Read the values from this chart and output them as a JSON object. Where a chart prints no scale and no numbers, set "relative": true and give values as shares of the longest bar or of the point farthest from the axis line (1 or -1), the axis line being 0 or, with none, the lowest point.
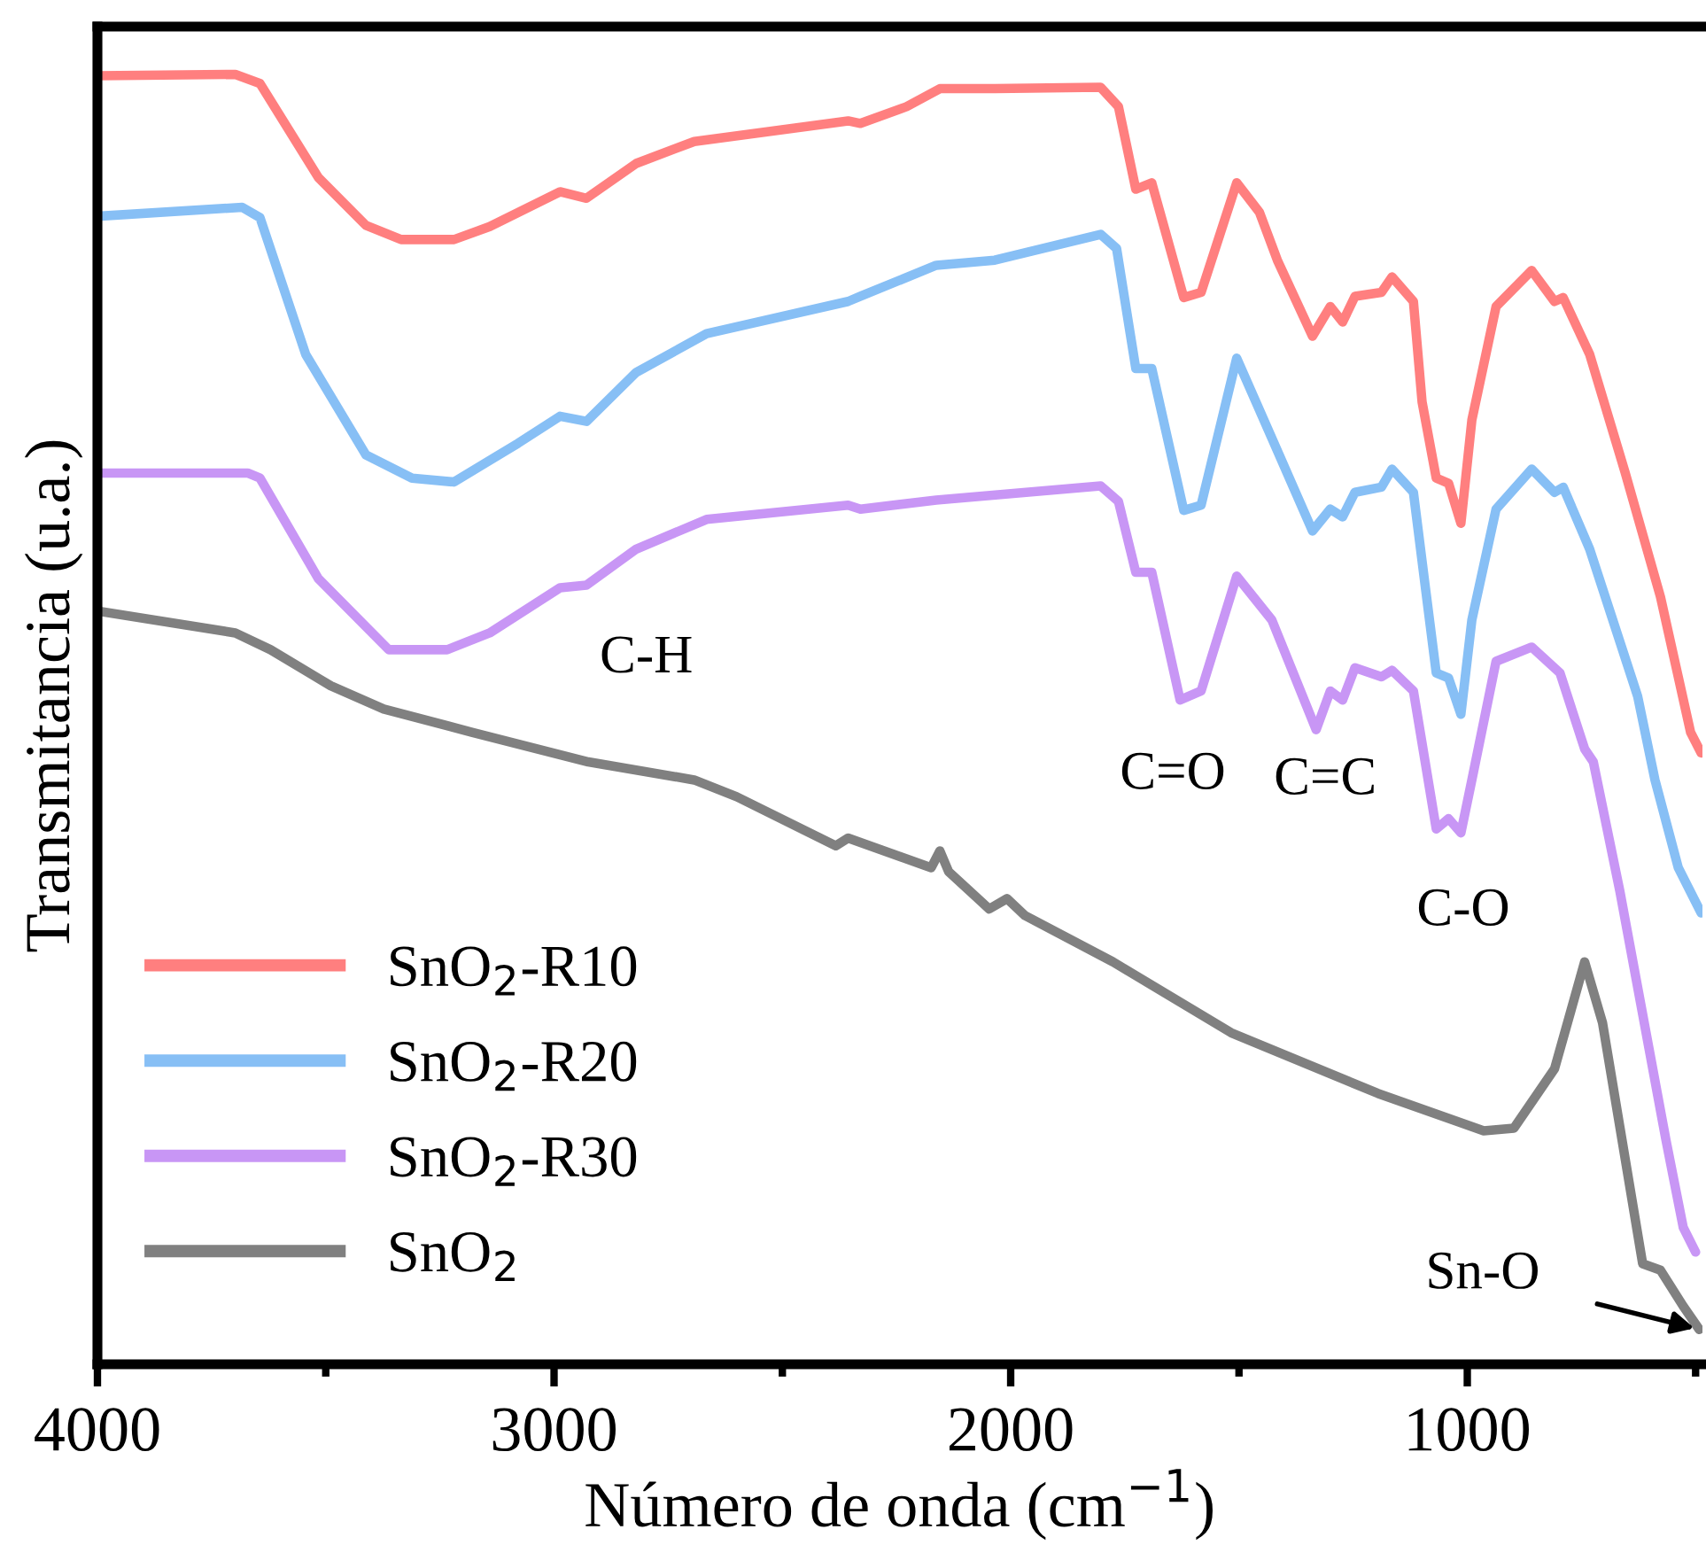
{
  "chart_data": {
    "type": "line",
    "relative": true,
    "xlabel": "Número de onda (cm$^{−1}$)",
    "ylabel": "Transmitancia (u.a.)",
    "xlim": [
      4000,
      485
    ],
    "xticks": [
      4000,
      {
        "value": 3500,
        "label": null
      },
      3000,
      {
        "value": 2500,
        "label": null
      },
      2000,
      {
        "value": 1500,
        "label": null
      },
      1000,
      {
        "value": 500,
        "label": null
      }
    ],
    "tick_labels": "x",
    "grid": false,
    "legend": "bottom left",
    "marker": "none",
    "line_style": "solid",
    "annotations": [
      "C-H",
      "C=O",
      "C=C",
      "C-O",
      {
        "text": "Sn-O",
        "x": 492,
        "y": 0.027
      }
    ],
    "series": [
      {
        "name": "SnO$_{2}$-R10",
        "color": "#ff7f7f",
        "x": [
          4000,
          3698,
          3644,
          3516,
          3412,
          3335,
          3219,
          3141,
          2987,
          2929,
          2820,
          2693,
          2356,
          2329,
          2228,
          2155,
          2035,
          1803,
          1764,
          1726,
          1691,
          1621,
          1583,
          1505,
          1455,
          1416,
          1339,
          1300,
          1273,
          1246,
          1188,
          1165,
          1118,
          1099,
          1068,
          1041,
          1014,
          990,
          937,
          859,
          809,
          790,
          732,
          654,
          577,
          511,
          488
        ],
        "values": [
          0.999,
          1.0,
          0.993,
          0.92,
          0.883,
          0.872,
          0.872,
          0.882,
          0.909,
          0.904,
          0.931,
          0.948,
          0.964,
          0.962,
          0.975,
          0.989,
          0.989,
          0.99,
          0.975,
          0.911,
          0.916,
          0.827,
          0.831,
          0.916,
          0.893,
          0.856,
          0.797,
          0.82,
          0.808,
          0.828,
          0.831,
          0.843,
          0.824,
          0.746,
          0.687,
          0.683,
          0.652,
          0.732,
          0.82,
          0.848,
          0.824,
          0.827,
          0.783,
          0.691,
          0.595,
          0.49,
          0.474
        ]
      },
      {
        "name": "SnO$_{2}$-R20",
        "color": "#87bff5",
        "x": [
          4000,
          3683,
          3644,
          3544,
          3412,
          3311,
          3219,
          3079,
          2987,
          2929,
          2820,
          2666,
          2356,
          2329,
          2163,
          2035,
          1803,
          1768,
          1726,
          1691,
          1621,
          1583,
          1505,
          1428,
          1339,
          1300,
          1273,
          1246,
          1188,
          1165,
          1118,
          1091,
          1068,
          1041,
          1014,
          990,
          937,
          859,
          809,
          790,
          732,
          627,
          589,
          538,
          488
        ],
        "values": [
          0.89,
          0.897,
          0.889,
          0.783,
          0.705,
          0.687,
          0.684,
          0.714,
          0.735,
          0.731,
          0.769,
          0.799,
          0.824,
          0.828,
          0.852,
          0.856,
          0.876,
          0.865,
          0.772,
          0.772,
          0.662,
          0.666,
          0.78,
          0.718,
          0.646,
          0.663,
          0.657,
          0.676,
          0.68,
          0.694,
          0.676,
          0.6,
          0.536,
          0.532,
          0.504,
          0.577,
          0.663,
          0.694,
          0.676,
          0.68,
          0.632,
          0.518,
          0.453,
          0.385,
          0.35
        ]
      },
      {
        "name": "SnO$_{2}$-R30",
        "color": "#c896f5",
        "x": [
          4000,
          3671,
          3644,
          3516,
          3362,
          3234,
          3141,
          2987,
          2929,
          2820,
          2666,
          2356,
          2329,
          2163,
          1803,
          1764,
          1726,
          1691,
          1629,
          1583,
          1505,
          1428,
          1331,
          1300,
          1273,
          1246,
          1188,
          1165,
          1118,
          1068,
          1041,
          1014,
          990,
          937,
          859,
          797,
          743,
          724,
          666,
          565,
          527,
          500
        ],
        "values": [
          0.691,
          0.691,
          0.687,
          0.609,
          0.554,
          0.554,
          0.567,
          0.602,
          0.604,
          0.632,
          0.655,
          0.666,
          0.663,
          0.67,
          0.681,
          0.669,
          0.614,
          0.614,
          0.515,
          0.522,
          0.611,
          0.577,
          0.492,
          0.522,
          0.515,
          0.54,
          0.533,
          0.538,
          0.522,
          0.415,
          0.423,
          0.412,
          0.453,
          0.545,
          0.556,
          0.536,
          0.477,
          0.467,
          0.367,
          0.174,
          0.106,
          0.087
        ]
      },
      {
        "name": "SnO$_{2}$",
        "color": "#808080",
        "x": [
          4000,
          3698,
          3621,
          3489,
          3373,
          3180,
          2925,
          2693,
          2600,
          2383,
          2356,
          2174,
          2155,
          2136,
          2047,
          2008,
          1969,
          1776,
          1517,
          1196,
          964,
          898,
          809,
          743,
          704,
          616,
          577,
          527,
          492
        ],
        "values": [
          0.584,
          0.567,
          0.554,
          0.526,
          0.508,
          0.49,
          0.467,
          0.453,
          0.44,
          0.402,
          0.408,
          0.385,
          0.398,
          0.382,
          0.353,
          0.361,
          0.348,
          0.312,
          0.257,
          0.21,
          0.181,
          0.183,
          0.229,
          0.312,
          0.265,
          0.078,
          0.073,
          0.045,
          0.027
        ]
      }
    ]
  }
}
